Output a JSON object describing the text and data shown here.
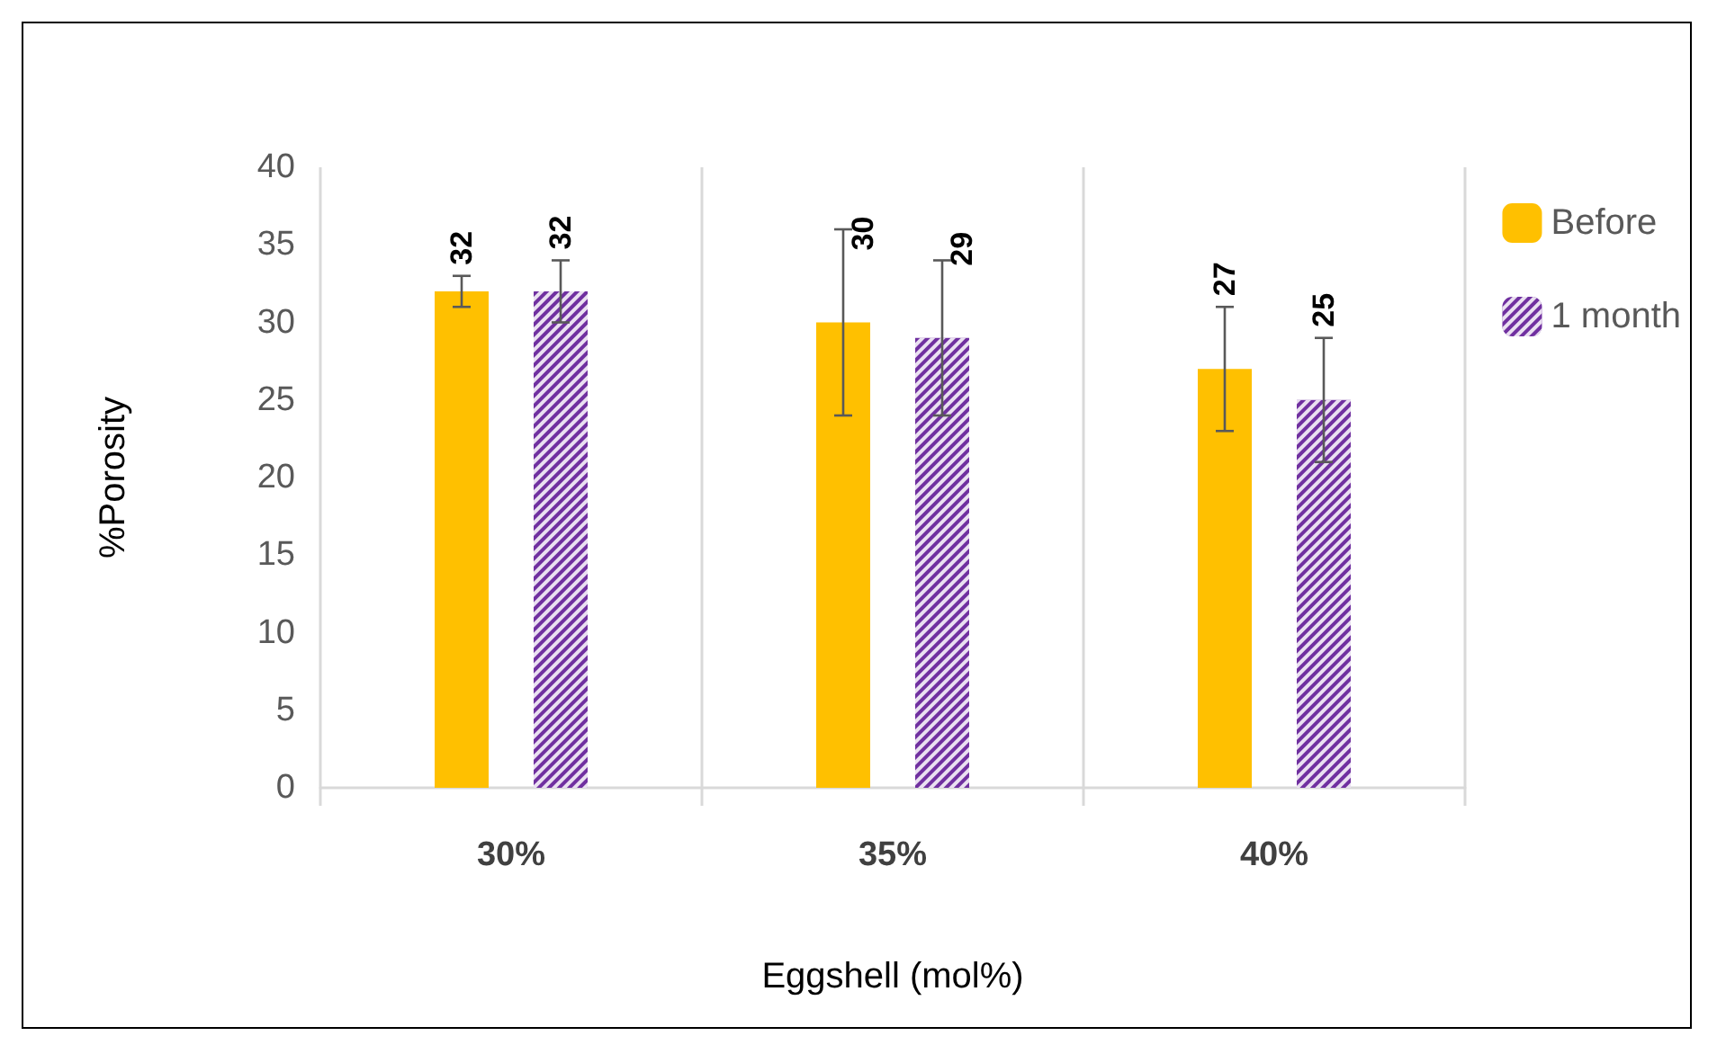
{
  "chart_data": {
    "type": "bar",
    "xlabel": "Eggshell (mol%)",
    "ylabel": "%Porosity",
    "categories": [
      "30%",
      "35%",
      "40%"
    ],
    "series": [
      {
        "name": "Before",
        "color": "#ffc000",
        "values": [
          32,
          30,
          27
        ],
        "errors": [
          [
            31,
            33
          ],
          [
            24,
            36
          ],
          [
            23,
            31
          ]
        ]
      },
      {
        "name": "1 month",
        "color": "#7030a0",
        "values": [
          32,
          29,
          25
        ],
        "errors": [
          [
            30,
            34
          ],
          [
            24,
            34
          ],
          [
            21,
            29
          ]
        ]
      }
    ],
    "ylim": [
      0,
      40
    ],
    "yticks": [
      0,
      5,
      10,
      15,
      20,
      25,
      30,
      35,
      40
    ],
    "grid": "x",
    "legend": "right",
    "data_labels": true
  }
}
